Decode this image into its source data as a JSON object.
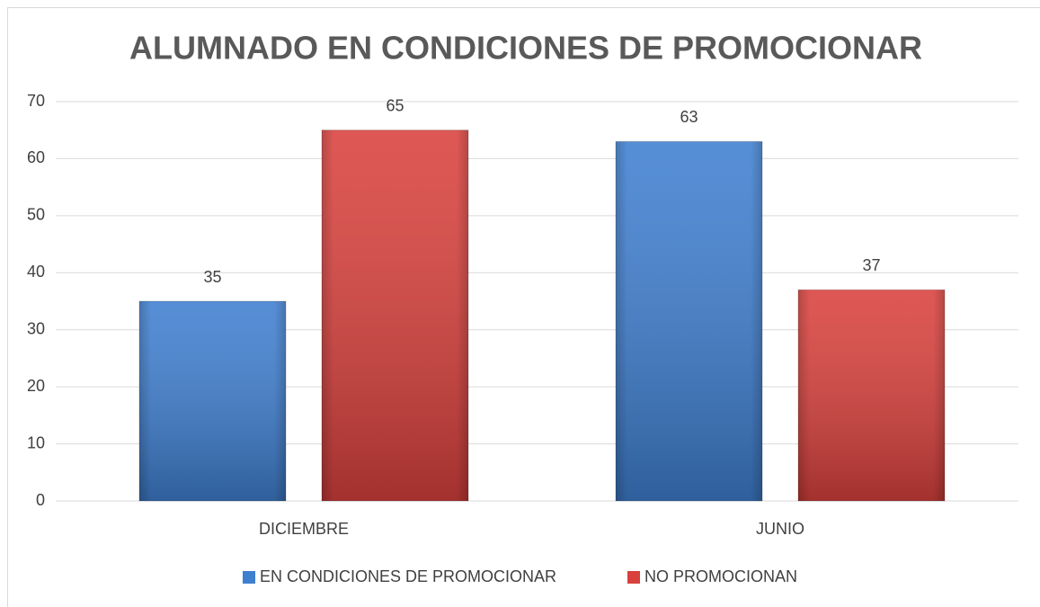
{
  "chart_data": {
    "type": "bar",
    "title": "ALUMNADO EN CONDICIONES DE PROMOCIONAR",
    "categories": [
      "DICIEMBRE",
      "JUNIO"
    ],
    "series": [
      {
        "name": "EN CONDICIONES DE PROMOCIONAR",
        "color": "#3f7fd0",
        "values": [
          35,
          63
        ]
      },
      {
        "name": "NO PROMOCIONAN",
        "color": "#d9413d",
        "values": [
          65,
          37
        ]
      }
    ],
    "ylim": [
      0,
      70
    ],
    "yticks": [
      0,
      10,
      20,
      30,
      40,
      50,
      60,
      70
    ],
    "grid": true,
    "legend": "bottom"
  }
}
